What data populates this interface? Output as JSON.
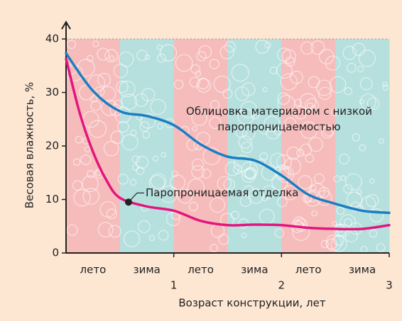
{
  "chart_data": {
    "type": "line",
    "y_label": "Весовая влажность, %",
    "x_label": "Возраст конструкции, лет",
    "xlim": [
      0,
      3
    ],
    "xticks": [
      1,
      2,
      3
    ],
    "ylim": [
      0,
      40
    ],
    "yticks": [
      0,
      10,
      20,
      30,
      40
    ],
    "bands": [
      {
        "label": "лето",
        "color": "#f6bcbc"
      },
      {
        "label": "зима",
        "color": "#b6e0de"
      },
      {
        "label": "лето",
        "color": "#f6bcbc"
      },
      {
        "label": "зима",
        "color": "#b6e0de"
      },
      {
        "label": "лето",
        "color": "#f6bcbc"
      },
      {
        "label": "зима",
        "color": "#b6e0de"
      }
    ],
    "series": [
      {
        "name": "Облицовка материалом с низкой паропроницаемостью",
        "color": "#1b7ec2",
        "x": [
          0,
          0.25,
          0.5,
          0.75,
          1,
          1.25,
          1.5,
          1.75,
          2,
          2.25,
          2.5,
          2.75,
          3
        ],
        "values": [
          37.3,
          30.3,
          26.5,
          25.6,
          23.9,
          20.3,
          18,
          17.3,
          14.5,
          10.9,
          9.2,
          7.9,
          7.5
        ]
      },
      {
        "name": "Паропроницаемая отделка",
        "color": "#e3157d",
        "x": [
          0,
          0.125,
          0.25,
          0.375,
          0.5,
          0.75,
          1,
          1.25,
          1.5,
          1.75,
          2,
          2.25,
          2.5,
          2.75,
          3
        ],
        "values": [
          36.3,
          26.3,
          18.9,
          13.6,
          10.3,
          8.7,
          7.9,
          6,
          5.2,
          5.3,
          5.2,
          4.7,
          4.5,
          4.5,
          5.2
        ],
        "marker": {
          "x": 0.58,
          "y": 9.5
        }
      }
    ]
  }
}
